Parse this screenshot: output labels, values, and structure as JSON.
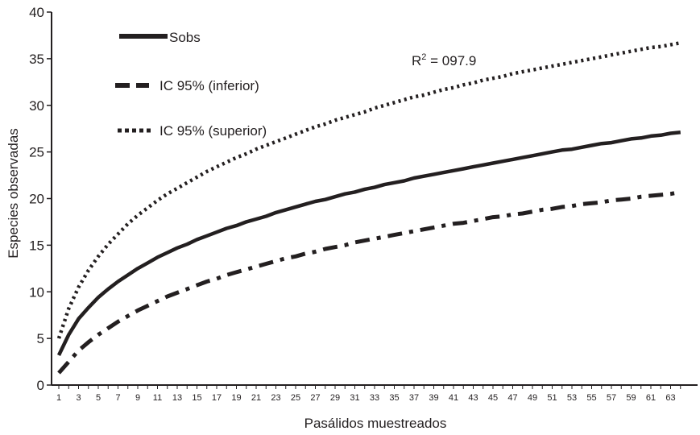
{
  "chart_data": {
    "type": "line",
    "title": "",
    "xlabel": "Pasálidos muestreados",
    "ylabel": "Especies observadas",
    "xlim": [
      1,
      64
    ],
    "ylim": [
      0,
      40
    ],
    "x_ticks": [
      1,
      3,
      5,
      7,
      9,
      11,
      13,
      15,
      17,
      19,
      21,
      23,
      25,
      27,
      29,
      31,
      33,
      35,
      37,
      39,
      41,
      43,
      45,
      47,
      49,
      51,
      53,
      55,
      57,
      59,
      61,
      63
    ],
    "y_ticks": [
      0,
      5,
      10,
      15,
      20,
      25,
      30,
      35,
      40
    ],
    "x": [
      1,
      2,
      3,
      4,
      5,
      6,
      7,
      8,
      9,
      10,
      11,
      12,
      13,
      14,
      15,
      16,
      17,
      18,
      19,
      20,
      21,
      22,
      23,
      24,
      25,
      26,
      27,
      28,
      29,
      30,
      31,
      32,
      33,
      34,
      35,
      36,
      37,
      38,
      39,
      40,
      41,
      42,
      43,
      44,
      45,
      46,
      47,
      48,
      49,
      50,
      51,
      52,
      53,
      54,
      55,
      56,
      57,
      58,
      59,
      60,
      61,
      62,
      63,
      64
    ],
    "series": [
      {
        "name": "Sobs",
        "style": "solid",
        "values": [
          3.2,
          5.4,
          7.1,
          8.3,
          9.4,
          10.3,
          11.1,
          11.8,
          12.5,
          13.1,
          13.7,
          14.2,
          14.7,
          15.1,
          15.6,
          16.0,
          16.4,
          16.8,
          17.1,
          17.5,
          17.8,
          18.1,
          18.5,
          18.8,
          19.1,
          19.4,
          19.7,
          19.9,
          20.2,
          20.5,
          20.7,
          21.0,
          21.2,
          21.5,
          21.7,
          21.9,
          22.2,
          22.4,
          22.6,
          22.8,
          23.0,
          23.2,
          23.4,
          23.6,
          23.8,
          24.0,
          24.2,
          24.4,
          24.6,
          24.8,
          25.0,
          25.2,
          25.3,
          25.5,
          25.7,
          25.9,
          26.0,
          26.2,
          26.4,
          26.5,
          26.7,
          26.8,
          27.0,
          27.1
        ]
      },
      {
        "name": "IC 95% (inferior)",
        "style": "dashdot",
        "values": [
          1.3,
          2.5,
          3.7,
          4.6,
          5.4,
          6.1,
          6.8,
          7.4,
          8.0,
          8.5,
          9.0,
          9.5,
          9.9,
          10.3,
          10.7,
          11.1,
          11.4,
          11.8,
          12.1,
          12.4,
          12.7,
          13.0,
          13.3,
          13.6,
          13.8,
          14.1,
          14.3,
          14.6,
          14.8,
          15.0,
          15.3,
          15.5,
          15.7,
          15.9,
          16.1,
          16.3,
          16.5,
          16.7,
          16.9,
          17.1,
          17.3,
          17.4,
          17.6,
          17.8,
          18.0,
          18.1,
          18.3,
          18.4,
          18.6,
          18.8,
          18.9,
          19.1,
          19.2,
          19.4,
          19.5,
          19.6,
          19.8,
          19.9,
          20.0,
          20.2,
          20.3,
          20.4,
          20.5,
          20.7
        ]
      },
      {
        "name": "IC 95% (superior)",
        "style": "dotted",
        "values": [
          5.0,
          8.2,
          10.5,
          12.3,
          13.8,
          15.1,
          16.2,
          17.3,
          18.2,
          19.0,
          19.8,
          20.5,
          21.1,
          21.7,
          22.3,
          22.9,
          23.4,
          23.9,
          24.4,
          24.8,
          25.3,
          25.7,
          26.1,
          26.5,
          26.9,
          27.3,
          27.7,
          28.0,
          28.4,
          28.7,
          29.0,
          29.3,
          29.7,
          30.0,
          30.3,
          30.6,
          30.9,
          31.1,
          31.4,
          31.7,
          31.9,
          32.2,
          32.4,
          32.7,
          32.9,
          33.1,
          33.4,
          33.6,
          33.8,
          34.0,
          34.2,
          34.4,
          34.6,
          34.8,
          35.0,
          35.2,
          35.4,
          35.6,
          35.8,
          36.0,
          36.2,
          36.3,
          36.5,
          36.7
        ]
      }
    ],
    "legend": {
      "position": "top-left",
      "entries": [
        "Sobs",
        "IC 95% (inferior)",
        "IC 95% (superior)"
      ]
    },
    "annotation": {
      "prefix": "R",
      "superscript": "2",
      "suffix": " = 097.9"
    },
    "grid": false
  }
}
